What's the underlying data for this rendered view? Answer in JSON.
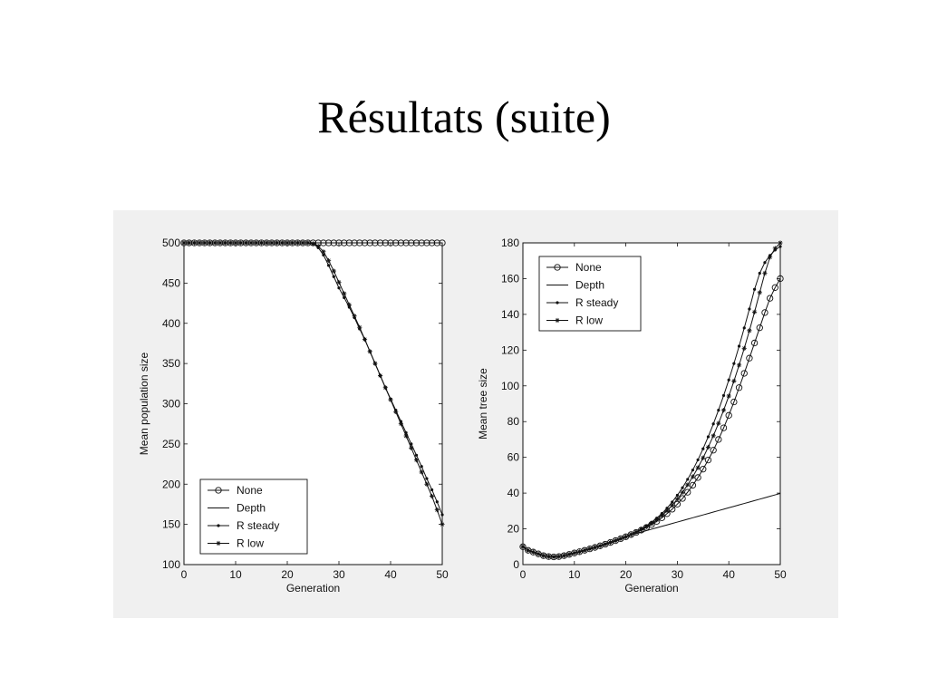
{
  "slide": {
    "title": "Résultats (suite)"
  },
  "colors": {
    "figure_bg": "#f0f0f0",
    "plot_bg": "#ffffff",
    "ink": "#111111"
  },
  "chart_data": [
    {
      "type": "line",
      "title": "",
      "xlabel": "Generation",
      "ylabel": "Mean population size",
      "xlim": [
        0,
        50
      ],
      "ylim": [
        100,
        500
      ],
      "xticks": [
        0,
        10,
        20,
        30,
        40,
        50
      ],
      "yticks": [
        100,
        150,
        200,
        250,
        300,
        350,
        400,
        450,
        500
      ],
      "grid": false,
      "legend": {
        "position": "bottom-left",
        "entries": [
          "None",
          "Depth",
          "R steady",
          "R low"
        ]
      },
      "x": [
        0,
        1,
        2,
        3,
        4,
        5,
        6,
        7,
        8,
        9,
        10,
        11,
        12,
        13,
        14,
        15,
        16,
        17,
        18,
        19,
        20,
        21,
        22,
        23,
        24,
        25,
        26,
        27,
        28,
        29,
        30,
        31,
        32,
        33,
        34,
        35,
        36,
        37,
        38,
        39,
        40,
        41,
        42,
        43,
        44,
        45,
        46,
        47,
        48,
        49,
        50
      ],
      "series": [
        {
          "name": "None",
          "marker": "circle",
          "values": [
            500,
            500,
            500,
            500,
            500,
            500,
            500,
            500,
            500,
            500,
            500,
            500,
            500,
            500,
            500,
            500,
            500,
            500,
            500,
            500,
            500,
            500,
            500,
            500,
            500,
            500,
            500,
            500,
            500,
            500,
            500,
            500,
            500,
            500,
            500,
            500,
            500,
            500,
            500,
            500,
            500,
            500,
            500,
            500,
            500,
            500,
            500,
            500,
            500,
            500,
            500
          ]
        },
        {
          "name": "Depth",
          "marker": "none",
          "values": [
            500,
            500,
            500,
            500,
            500,
            500,
            500,
            500,
            500,
            500,
            500,
            500,
            500,
            500,
            500,
            500,
            500,
            500,
            500,
            500,
            500,
            500,
            500,
            500,
            500,
            500,
            500,
            500,
            500,
            500,
            500,
            500,
            500,
            500,
            500,
            500,
            500,
            500,
            500,
            500,
            500,
            500,
            500,
            500,
            500,
            500,
            500,
            500,
            500,
            500,
            500
          ]
        },
        {
          "name": "R steady",
          "marker": "dot",
          "values": [
            500,
            500,
            500,
            500,
            500,
            500,
            500,
            500,
            500,
            500,
            500,
            500,
            500,
            500,
            500,
            500,
            500,
            500,
            500,
            500,
            500,
            500,
            500,
            500,
            500,
            499,
            494,
            485,
            472,
            458,
            444,
            432,
            420,
            407,
            393,
            380,
            365,
            350,
            335,
            320,
            306,
            292,
            278,
            264,
            250,
            236,
            222,
            207,
            193,
            178,
            162
          ]
        },
        {
          "name": "R low",
          "marker": "star",
          "values": [
            500,
            500,
            500,
            500,
            500,
            500,
            500,
            500,
            500,
            500,
            500,
            500,
            500,
            500,
            500,
            500,
            500,
            500,
            500,
            500,
            500,
            500,
            500,
            500,
            500,
            499,
            496,
            489,
            478,
            465,
            451,
            437,
            423,
            409,
            395,
            380,
            365,
            350,
            335,
            320,
            305,
            290,
            275,
            260,
            245,
            230,
            215,
            200,
            185,
            168,
            150
          ]
        }
      ]
    },
    {
      "type": "line",
      "title": "",
      "xlabel": "Generation",
      "ylabel": "Mean tree size",
      "xlim": [
        0,
        50
      ],
      "ylim": [
        0,
        180
      ],
      "xticks": [
        0,
        10,
        20,
        30,
        40,
        50
      ],
      "yticks": [
        0,
        20,
        40,
        60,
        80,
        100,
        120,
        140,
        160,
        180
      ],
      "grid": false,
      "legend": {
        "position": "top-left",
        "entries": [
          "None",
          "Depth",
          "R steady",
          "R low"
        ]
      },
      "x": [
        0,
        1,
        2,
        3,
        4,
        5,
        6,
        7,
        8,
        9,
        10,
        11,
        12,
        13,
        14,
        15,
        16,
        17,
        18,
        19,
        20,
        21,
        22,
        23,
        24,
        25,
        26,
        27,
        28,
        29,
        30,
        31,
        32,
        33,
        34,
        35,
        36,
        37,
        38,
        39,
        40,
        41,
        42,
        43,
        44,
        45,
        46,
        47,
        48,
        49,
        50
      ],
      "series": [
        {
          "name": "None",
          "marker": "circle",
          "values": [
            10,
            8,
            7,
            6,
            5,
            4.5,
            4.3,
            4.5,
            5,
            5.7,
            6.5,
            7.2,
            8,
            8.8,
            9.6,
            10.5,
            11.4,
            12.4,
            13.4,
            14.5,
            15.6,
            16.8,
            18,
            19.3,
            20.8,
            22.4,
            24.2,
            26.2,
            28.5,
            31,
            33.8,
            37,
            40.5,
            44.4,
            48.7,
            53.4,
            58.5,
            64,
            70,
            76.5,
            83.5,
            91,
            99,
            107,
            115.5,
            124,
            132.5,
            141,
            149,
            155,
            160
          ]
        },
        {
          "name": "Depth",
          "marker": "none",
          "values": [
            10,
            8,
            7,
            6,
            5,
            4.5,
            4.3,
            4.5,
            5,
            5.7,
            6.5,
            7.2,
            8,
            8.8,
            9.6,
            10.5,
            11.4,
            12.4,
            13.4,
            14.5,
            15.6,
            16.6,
            17.4,
            18.2,
            19,
            19.8,
            20.6,
            21.4,
            22.2,
            23,
            23.8,
            24.6,
            25.4,
            26.2,
            27,
            27.8,
            28.6,
            29.4,
            30.2,
            31,
            31.8,
            32.6,
            33.4,
            34.2,
            35,
            35.8,
            36.6,
            37.4,
            38.2,
            39,
            39.8
          ]
        },
        {
          "name": "R steady",
          "marker": "dot",
          "values": [
            10,
            8,
            7,
            6,
            5,
            4.5,
            4.3,
            4.5,
            5,
            5.7,
            6.5,
            7.2,
            8,
            8.8,
            9.6,
            10.5,
            11.4,
            12.4,
            13.4,
            14.5,
            15.6,
            16.9,
            18.3,
            19.9,
            21.7,
            23.7,
            26,
            28.6,
            31.6,
            35,
            38.8,
            43,
            47.7,
            52.9,
            58.6,
            64.8,
            71.5,
            78.7,
            86.4,
            94.6,
            103.3,
            112.5,
            122.2,
            132.4,
            143,
            154,
            163,
            169,
            173,
            176,
            178
          ]
        },
        {
          "name": "R low",
          "marker": "star",
          "values": [
            10,
            8,
            7,
            6,
            5,
            4.5,
            4.3,
            4.5,
            5,
            5.7,
            6.5,
            7.2,
            8,
            8.8,
            9.6,
            10.5,
            11.4,
            12.4,
            13.4,
            14.5,
            15.6,
            16.8,
            18.1,
            19.5,
            21.1,
            22.9,
            25,
            27.4,
            30.1,
            33.2,
            36.6,
            40.4,
            44.6,
            49.2,
            54.2,
            59.7,
            65.7,
            72.1,
            79,
            86.4,
            94.3,
            102.7,
            111.6,
            121,
            130.9,
            141.3,
            152.2,
            163,
            172,
            177,
            180
          ]
        }
      ]
    }
  ]
}
